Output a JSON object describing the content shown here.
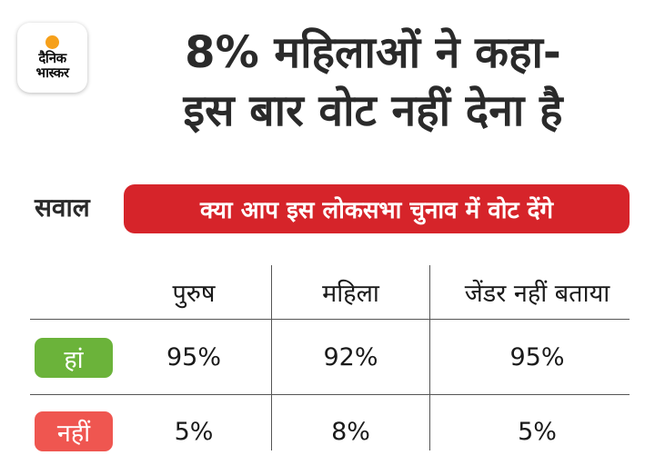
{
  "logo": {
    "line1": "दैनिक",
    "line2": "भास्कर",
    "accent_color": "#f6a01a"
  },
  "headline": {
    "line1": "8% महिलाओं ने कहा-",
    "line2": "इस बार वोट नहीं देना है"
  },
  "question": {
    "label": "सवाल",
    "text": "क्या आप इस लोकसभा चुनाव में वोट देंगे",
    "pill_color": "#d6242a"
  },
  "table": {
    "columns": [
      "पुरुष",
      "महिला",
      "जेंडर नहीं बताया"
    ],
    "rows": [
      {
        "label": "हां",
        "color": "#6bb33a",
        "values": [
          "95%",
          "92%",
          "95%"
        ]
      },
      {
        "label": "नहीं",
        "color": "#ef5650",
        "values": [
          "5%",
          "8%",
          "5%"
        ]
      }
    ]
  }
}
